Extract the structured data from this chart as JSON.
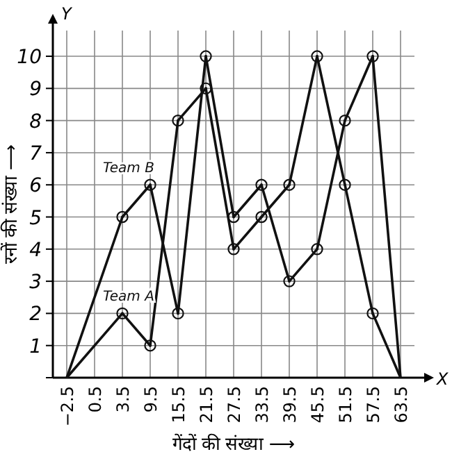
{
  "chart_data": {
    "type": "line",
    "xlabel": "गेंदों की संख्या ⟶",
    "ylabel": "रनों की संख्या ⟶",
    "annotations": [
      "X",
      "Y"
    ],
    "categories": [
      "−2.5",
      "0.5",
      "3.5",
      "9.5",
      "15.5",
      "21.5",
      "27.5",
      "33.5",
      "39.5",
      "45.5",
      "51.5",
      "57.5",
      "63.5"
    ],
    "series": [
      {
        "name": "Team A",
        "color": "#111111",
        "values": [
          0,
          null,
          2,
          1,
          8,
          9,
          4,
          5,
          6,
          10,
          6,
          2,
          0
        ]
      },
      {
        "name": "Team B",
        "color": "#111111",
        "values": [
          0,
          null,
          5,
          6,
          2,
          10,
          5,
          6,
          3,
          4,
          8,
          10,
          0
        ]
      }
    ],
    "ylim": [
      0,
      10.8
    ],
    "yticks": [
      {
        "value": 0,
        "label": null
      },
      1,
      2,
      3,
      4,
      5,
      6,
      7,
      8,
      9,
      10
    ],
    "grid": true,
    "legend": false,
    "marker": "circle",
    "line_style": "solid"
  }
}
